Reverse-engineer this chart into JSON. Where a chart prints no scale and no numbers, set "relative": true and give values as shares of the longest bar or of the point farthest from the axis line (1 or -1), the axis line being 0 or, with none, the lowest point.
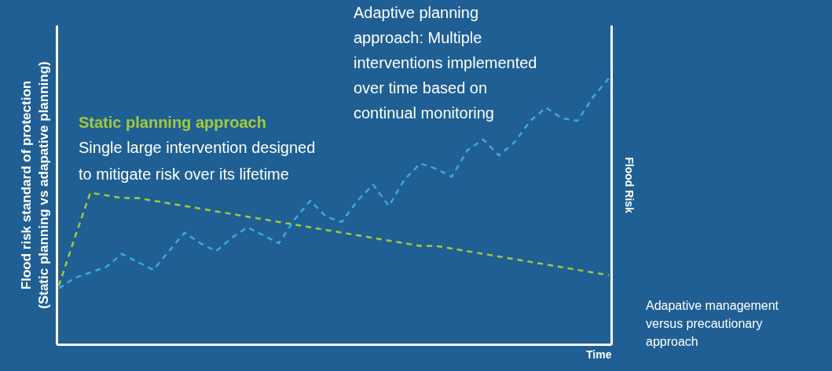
{
  "chart_data": {
    "type": "line",
    "relative": true,
    "xlabel": "Time",
    "ylabel": "Flood risk standard of protection (Static planning vs adapative planning)",
    "y2label": "Flood Risk",
    "categories": [
      null,
      null,
      null,
      null,
      null,
      null,
      null,
      null,
      null,
      null,
      null,
      null,
      null,
      null,
      null,
      null,
      null,
      null,
      null,
      null,
      null,
      null,
      null,
      null,
      null,
      null,
      null,
      null,
      null,
      null,
      null,
      null,
      null,
      null,
      null,
      null
    ],
    "line_style": "dashed",
    "series": [
      {
        "name": "Static planning approach",
        "color": "#a3c93a",
        "values": [
          0.22,
          0.4,
          0.57,
          0.56,
          0.55,
          0.55,
          0.54,
          0.53,
          0.52,
          0.51,
          0.5,
          0.49,
          0.48,
          0.47,
          0.46,
          0.45,
          0.44,
          0.43,
          0.42,
          0.41,
          0.4,
          0.39,
          0.38,
          0.37,
          0.37,
          0.36,
          0.35,
          0.34,
          0.33,
          0.32,
          0.31,
          0.3,
          0.29,
          0.28,
          0.27,
          0.26
        ]
      },
      {
        "color": "#3aa9e0",
        "values": [
          0.21,
          0.25,
          0.27,
          0.29,
          0.34,
          0.31,
          0.28,
          0.35,
          0.42,
          0.38,
          0.35,
          0.4,
          0.44,
          0.41,
          0.38,
          0.47,
          0.54,
          0.48,
          0.46,
          0.54,
          0.6,
          0.52,
          0.62,
          0.68,
          0.66,
          0.63,
          0.73,
          0.77,
          0.71,
          0.76,
          0.84,
          0.89,
          0.85,
          0.84,
          0.93,
          1.0
        ]
      }
    ],
    "annotations": [
      "Single large intervention designed to mitigate risk over its lifetime",
      "Adaptive planning approach: Multiple interventions implemented over time based on continual monitoring",
      "Adapative management versus precautionary approach"
    ]
  }
}
